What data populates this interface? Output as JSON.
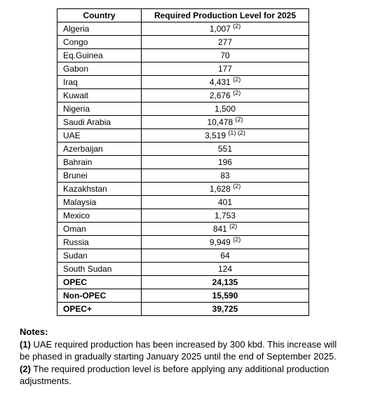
{
  "table": {
    "headers": {
      "country": "Country",
      "value": "Required Production Level for 2025"
    },
    "rows": [
      {
        "country": "Algeria",
        "value": "1,007",
        "sup": "(2)",
        "bold": false
      },
      {
        "country": "Congo",
        "value": "277",
        "sup": "",
        "bold": false
      },
      {
        "country": "Eq.Guinea",
        "value": "70",
        "sup": "",
        "bold": false
      },
      {
        "country": "Gabon",
        "value": "177",
        "sup": "",
        "bold": false
      },
      {
        "country": "Iraq",
        "value": "4,431",
        "sup": "(2)",
        "bold": false
      },
      {
        "country": "Kuwait",
        "value": "2,676",
        "sup": "(2)",
        "bold": false
      },
      {
        "country": "Nigeria",
        "value": "1,500",
        "sup": "",
        "bold": false
      },
      {
        "country": "Saudi Arabia",
        "value": "10,478",
        "sup": "(2)",
        "bold": false
      },
      {
        "country": "UAE",
        "value": "3,519",
        "sup": "(1) (2)",
        "bold": false
      },
      {
        "country": "Azerbaijan",
        "value": "551",
        "sup": "",
        "bold": false
      },
      {
        "country": "Bahrain",
        "value": "196",
        "sup": "",
        "bold": false
      },
      {
        "country": "Brunei",
        "value": "83",
        "sup": "",
        "bold": false
      },
      {
        "country": "Kazakhstan",
        "value": "1,628",
        "sup": "(2)",
        "bold": false
      },
      {
        "country": "Malaysia",
        "value": "401",
        "sup": "",
        "bold": false
      },
      {
        "country": "Mexico",
        "value": "1,753",
        "sup": "",
        "bold": false
      },
      {
        "country": "Oman",
        "value": "841",
        "sup": "(2)",
        "bold": false
      },
      {
        "country": "Russia",
        "value": "9,949",
        "sup": "(2)",
        "bold": false
      },
      {
        "country": "Sudan",
        "value": "64",
        "sup": "",
        "bold": false
      },
      {
        "country": "South Sudan",
        "value": "124",
        "sup": "",
        "bold": false
      },
      {
        "country": "OPEC",
        "value": "24,135",
        "sup": "",
        "bold": true
      },
      {
        "country": "Non-OPEC",
        "value": "15,590",
        "sup": "",
        "bold": true
      },
      {
        "country": "OPEC+",
        "value": "39,725",
        "sup": "",
        "bold": true
      }
    ]
  },
  "notes": {
    "heading": "Notes:",
    "items": [
      {
        "ref": "(1)",
        "text": " UAE required production has been increased by 300 kbd. This increase will be phased in gradually starting January 2025 until the end of September 2025."
      },
      {
        "ref": "(2)",
        "text": " The required production level is before applying any additional production adjustments."
      }
    ]
  }
}
